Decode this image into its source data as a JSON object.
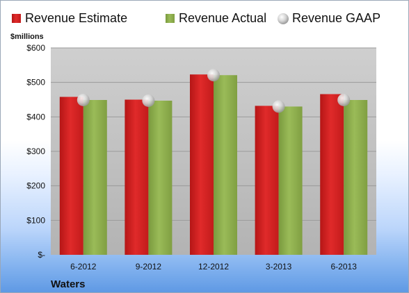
{
  "company": "Waters",
  "colors": {
    "estimate": "#d42020",
    "actual": "#8cac4c",
    "gaap": "#c9c9c9",
    "plot_bg": "#c8c8c8",
    "grid": "#9a9a9a"
  },
  "chart_data": {
    "type": "bar",
    "title": "",
    "ylabel": "$millions",
    "xlabel": "",
    "ylim": [
      0,
      600
    ],
    "yticks": [
      0,
      100,
      200,
      300,
      400,
      500,
      600
    ],
    "ytick_labels": [
      "$-",
      "$100",
      "$200",
      "$300",
      "$400",
      "$500",
      "$600"
    ],
    "grid": true,
    "legend_position": "top",
    "categories": [
      "6-2012",
      "9-2012",
      "12-2012",
      "3-2013",
      "6-2013"
    ],
    "series": [
      {
        "name": "Revenue Estimate",
        "kind": "bar",
        "values": [
          458,
          450,
          523,
          432,
          466
        ]
      },
      {
        "name": "Revenue Actual",
        "kind": "bar",
        "values": [
          449,
          447,
          521,
          430,
          449
        ]
      },
      {
        "name": "Revenue GAAP",
        "kind": "marker",
        "values": [
          449,
          447,
          521,
          430,
          449
        ]
      }
    ]
  }
}
